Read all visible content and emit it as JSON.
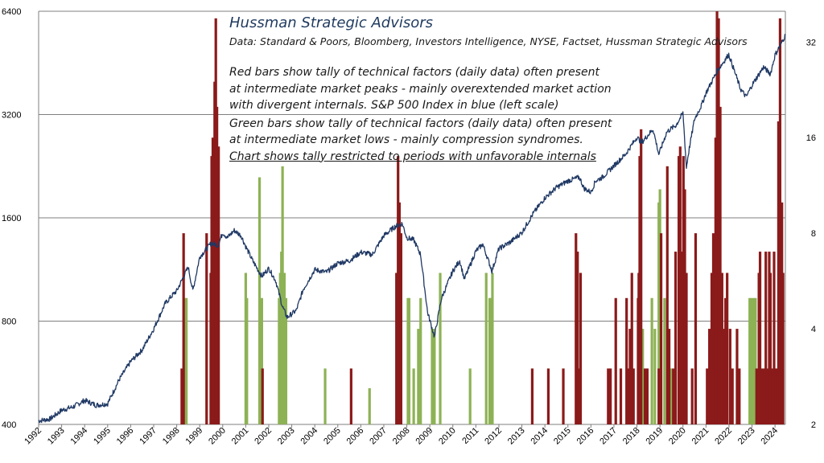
{
  "chart_data": {
    "type": "bar+line",
    "title": "Hussman Strategic Advisors",
    "subtitle": "Data: Standard & Poors, Bloomberg, Investors Intelligence,  NYSE, Factset, Hussman Strategic Advisors",
    "annotation_lines": [
      "Red bars show tally of technical factors (daily data) often present",
      "at intermediate market peaks - mainly overextended market action",
      "with divergent internals. S&P 500 Index in blue (left scale)",
      "Green bars show tally of technical factors (daily data) often present",
      "at intermediate market lows - mainly compression syndromes.",
      "Chart shows tally restricted to periods with unfavorable internals"
    ],
    "left_axis": {
      "scale": "log",
      "ticks": [
        "400",
        "800",
        "1600",
        "3200",
        "6400"
      ],
      "range": [
        400,
        6400
      ]
    },
    "right_axis": {
      "scale": "log",
      "ticks": [
        "2",
        "4",
        "8",
        "16",
        "32"
      ],
      "range": [
        2,
        40
      ]
    },
    "x_ticks": [
      "1992",
      "1993",
      "1994",
      "1995",
      "1996",
      "1997",
      "1998",
      "1999",
      "2000",
      "2001",
      "2002",
      "2003",
      "2004",
      "2005",
      "2006",
      "2007",
      "2008",
      "2009",
      "2010",
      "2011",
      "2012",
      "2013",
      "2014",
      "2015",
      "2016",
      "2017",
      "2018",
      "2019",
      "2020",
      "2021",
      "2022",
      "2023",
      "2024"
    ],
    "x_range": [
      1992.0,
      2024.45
    ],
    "grid": "horizontal",
    "colors": {
      "spx": "#1f3864",
      "red_bars": "#8b1a1a",
      "green_bars": "#8db255",
      "grid": "#7f7f7f"
    },
    "spx_series": {
      "name": "S&P 500 Index",
      "x": [
        1992.0,
        1992.5,
        1993.0,
        1993.5,
        1994.0,
        1994.5,
        1995.0,
        1995.5,
        1996.0,
        1996.5,
        1997.0,
        1997.5,
        1997.8,
        1998.0,
        1998.5,
        1998.7,
        1999.0,
        1999.5,
        1999.8,
        2000.0,
        2000.2,
        2000.5,
        2000.8,
        2001.0,
        2001.3,
        2001.7,
        2002.0,
        2002.3,
        2002.6,
        2002.8,
        2003.2,
        2003.5,
        2004.0,
        2004.5,
        2005.0,
        2005.5,
        2006.0,
        2006.5,
        2007.0,
        2007.5,
        2007.8,
        2008.0,
        2008.3,
        2008.6,
        2008.9,
        2009.2,
        2009.5,
        2010.0,
        2010.3,
        2010.5,
        2011.0,
        2011.3,
        2011.7,
        2012.0,
        2012.5,
        2013.0,
        2013.5,
        2014.0,
        2014.5,
        2015.0,
        2015.5,
        2015.7,
        2016.0,
        2016.2,
        2016.5,
        2017.0,
        2017.5,
        2018.0,
        2018.2,
        2018.7,
        2018.95,
        2019.3,
        2019.7,
        2020.0,
        2020.15,
        2020.23,
        2020.5,
        2020.8,
        2021.0,
        2021.5,
        2021.99,
        2022.5,
        2022.75,
        2023.0,
        2023.5,
        2023.8,
        2024.0,
        2024.3,
        2024.45
      ],
      "values": [
        410,
        415,
        440,
        450,
        470,
        455,
        460,
        540,
        610,
        660,
        760,
        900,
        950,
        980,
        1150,
        980,
        1230,
        1350,
        1330,
        1450,
        1400,
        1470,
        1420,
        1320,
        1200,
        1080,
        1140,
        1050,
        880,
        820,
        860,
        990,
        1130,
        1110,
        1180,
        1200,
        1270,
        1250,
        1420,
        1510,
        1540,
        1400,
        1380,
        1250,
        850,
        720,
        930,
        1120,
        1200,
        1060,
        1280,
        1340,
        1120,
        1300,
        1360,
        1450,
        1650,
        1830,
        1960,
        2050,
        2100,
        1950,
        1900,
        2050,
        2100,
        2270,
        2450,
        2750,
        2650,
        2900,
        2450,
        2850,
        2980,
        3230,
        2240,
        2450,
        3100,
        3400,
        3700,
        4300,
        4790,
        3800,
        3600,
        3900,
        4400,
        4200,
        4770,
        5200,
        5450
      ]
    },
    "red_bars": {
      "name": "Red bars",
      "x": [
        1998.22,
        1998.3,
        1999.3,
        1999.48,
        1999.52,
        1999.57,
        1999.65,
        1999.7,
        1999.75,
        1999.82,
        2001.73,
        2005.58,
        2007.55,
        2007.62,
        2007.68,
        2007.75,
        2013.45,
        2014.15,
        2014.8,
        2015.35,
        2015.42,
        2015.48,
        2015.55,
        2016.75,
        2016.85,
        2017.08,
        2017.3,
        2017.55,
        2017.62,
        2017.7,
        2017.78,
        2017.85,
        2018.05,
        2018.08,
        2018.12,
        2018.18,
        2018.35,
        2018.45,
        2018.95,
        2019.05,
        2019.32,
        2019.4,
        2019.58,
        2019.68,
        2019.82,
        2019.88,
        2019.95,
        2020.02,
        2020.08,
        2020.15,
        2020.4,
        2020.55,
        2021.05,
        2021.15,
        2021.25,
        2021.32,
        2021.38,
        2021.42,
        2021.48,
        2021.55,
        2021.62,
        2021.7,
        2021.78,
        2021.85,
        2021.92,
        2022.05,
        2022.15,
        2022.35,
        2022.45,
        2023.2,
        2023.3,
        2023.35,
        2023.45,
        2023.55,
        2023.6,
        2023.67,
        2023.75,
        2023.8,
        2023.9,
        2023.96,
        2024.02,
        2024.1,
        2024.15,
        2024.22,
        2024.3,
        2024.35
      ],
      "values": [
        3,
        8,
        8,
        6,
        14,
        16,
        24,
        38,
        20,
        15,
        3,
        3,
        6,
        14,
        10,
        8,
        3,
        3,
        3,
        8,
        7,
        3,
        6,
        3,
        3,
        5,
        3,
        5,
        3,
        4,
        6,
        3,
        5,
        6,
        14,
        17,
        3,
        3,
        3,
        8,
        13,
        4,
        3,
        7,
        14,
        15,
        7,
        14,
        11,
        6,
        3,
        8,
        3,
        4,
        6,
        8,
        7,
        16,
        40,
        38,
        20,
        6,
        4,
        5,
        6,
        4,
        3,
        4,
        3,
        3,
        6,
        7,
        3,
        3,
        7,
        3,
        7,
        6,
        3,
        7,
        3,
        3,
        18,
        38,
        10,
        6
      ]
    },
    "green_bars": {
      "name": "Green bars",
      "x": [
        1998.35,
        1998.42,
        2001.0,
        2001.05,
        2001.6,
        2001.7,
        2002.45,
        2002.5,
        2002.55,
        2002.6,
        2002.68,
        2002.75,
        2004.45,
        2006.38,
        2008.05,
        2008.1,
        2008.3,
        2008.5,
        2008.6,
        2009.1,
        2009.2,
        2009.45,
        2010.75,
        2011.45,
        2011.6,
        2011.65,
        2011.72,
        2018.25,
        2018.65,
        2018.78,
        2018.95,
        2019.0,
        2019.2,
        2019.5,
        2022.9,
        2022.98,
        2023.08,
        2023.15
      ],
      "values": [
        5,
        5,
        6,
        5,
        12,
        5,
        5,
        6,
        7,
        13,
        6,
        5,
        3,
        2.6,
        5,
        5,
        3,
        4,
        5,
        4,
        4,
        6,
        3,
        6,
        5,
        5,
        6,
        4,
        5,
        4,
        10,
        11,
        5,
        3,
        5,
        5,
        5,
        5
      ]
    }
  }
}
